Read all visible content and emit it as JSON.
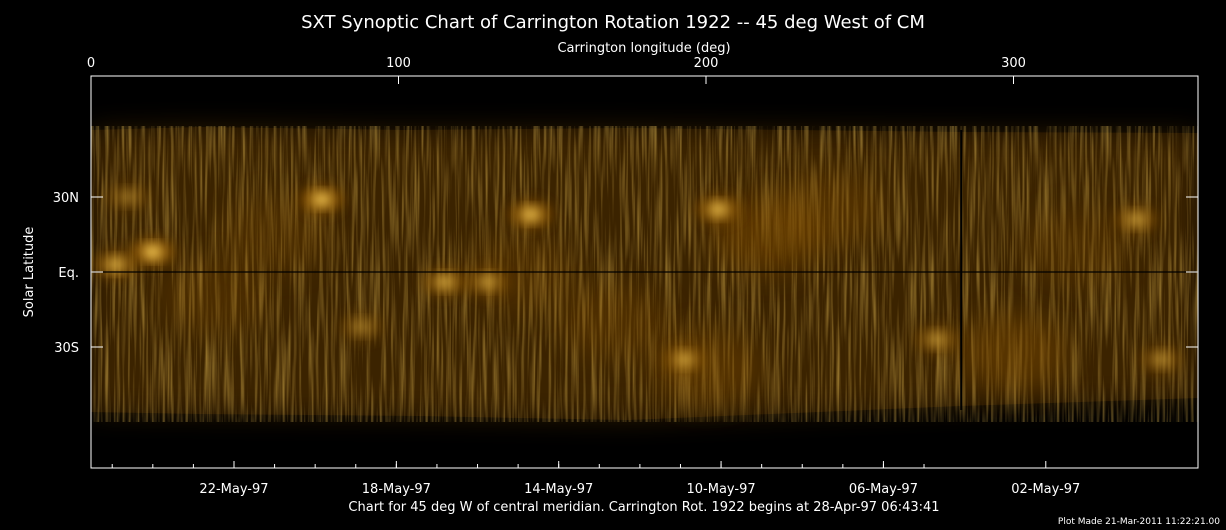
{
  "chart_data": {
    "type": "heatmap",
    "title": "SXT Synoptic Chart of Carrington Rotation 1922 -- 45 deg West of CM",
    "top_axis": {
      "label": "Carrington longitude (deg)",
      "range": [
        0,
        360
      ],
      "ticks": [
        {
          "value": 0,
          "label": "0"
        },
        {
          "value": 100,
          "label": "100"
        },
        {
          "value": 200,
          "label": "200"
        },
        {
          "value": 300,
          "label": "300"
        }
      ]
    },
    "y_axis": {
      "label": "Solar Latitude",
      "range_deg": [
        -90,
        90
      ],
      "ticks": [
        {
          "value": 30,
          "label": "30N"
        },
        {
          "value": 0,
          "label": "Eq."
        },
        {
          "value": -30,
          "label": "30S"
        }
      ]
    },
    "bottom_axis": {
      "ticks": [
        {
          "value": 46.5,
          "label": "22-May-97"
        },
        {
          "value": 99.3,
          "label": "18-May-97"
        },
        {
          "value": 152.1,
          "label": "14-May-97"
        },
        {
          "value": 204.9,
          "label": "10-May-97"
        },
        {
          "value": 257.7,
          "label": "06-May-97"
        },
        {
          "value": 310.5,
          "label": "02-May-97"
        }
      ]
    },
    "caption": "Chart for 45 deg W of central meridian.  Carrington Rot. 1922 begins at 28-Apr-97 06:43:41",
    "footer": "Plot Made 21-Mar-2011 11:22:21.00",
    "colormap": "gold on black (solar X-ray intensity)",
    "colors": {
      "background": "#000000",
      "low": "#1a0f00",
      "mid": "#7a4a05",
      "high": "#ffd25a",
      "text": "#ffffff"
    },
    "bright_regions": [
      {
        "lon": 20,
        "lat": 8,
        "intensity": 1.0
      },
      {
        "lon": 8,
        "lat": 3,
        "intensity": 0.75
      },
      {
        "lon": 75,
        "lat": 29,
        "intensity": 0.95
      },
      {
        "lon": 143,
        "lat": 23,
        "intensity": 0.9
      },
      {
        "lon": 204,
        "lat": 25,
        "intensity": 0.85
      },
      {
        "lon": 115,
        "lat": -4,
        "intensity": 0.7
      },
      {
        "lon": 129,
        "lat": -4,
        "intensity": 0.6
      },
      {
        "lon": 193,
        "lat": -35,
        "intensity": 0.65
      },
      {
        "lon": 275,
        "lat": -27,
        "intensity": 0.55
      },
      {
        "lon": 340,
        "lat": 21,
        "intensity": 0.6
      },
      {
        "lon": 348,
        "lat": -35,
        "intensity": 0.5
      },
      {
        "lon": 88,
        "lat": -22,
        "intensity": 0.4
      },
      {
        "lon": 12,
        "lat": 30,
        "intensity": 0.4
      }
    ],
    "diffuse_regions": [
      {
        "lon": 220,
        "lat": 15,
        "intensity": 0.5
      },
      {
        "lon": 240,
        "lat": 25,
        "intensity": 0.35
      },
      {
        "lon": 300,
        "lat": -32,
        "intensity": 0.45
      },
      {
        "lon": 200,
        "lat": -38,
        "intensity": 0.4
      },
      {
        "lon": 140,
        "lat": 0,
        "intensity": 0.25
      },
      {
        "lon": 40,
        "lat": -10,
        "intensity": 0.25
      },
      {
        "lon": 320,
        "lat": 10,
        "intensity": 0.25
      },
      {
        "lon": 170,
        "lat": -20,
        "intensity": 0.3
      },
      {
        "lon": 60,
        "lat": 15,
        "intensity": 0.25
      }
    ],
    "data_gap_lon": 283
  }
}
